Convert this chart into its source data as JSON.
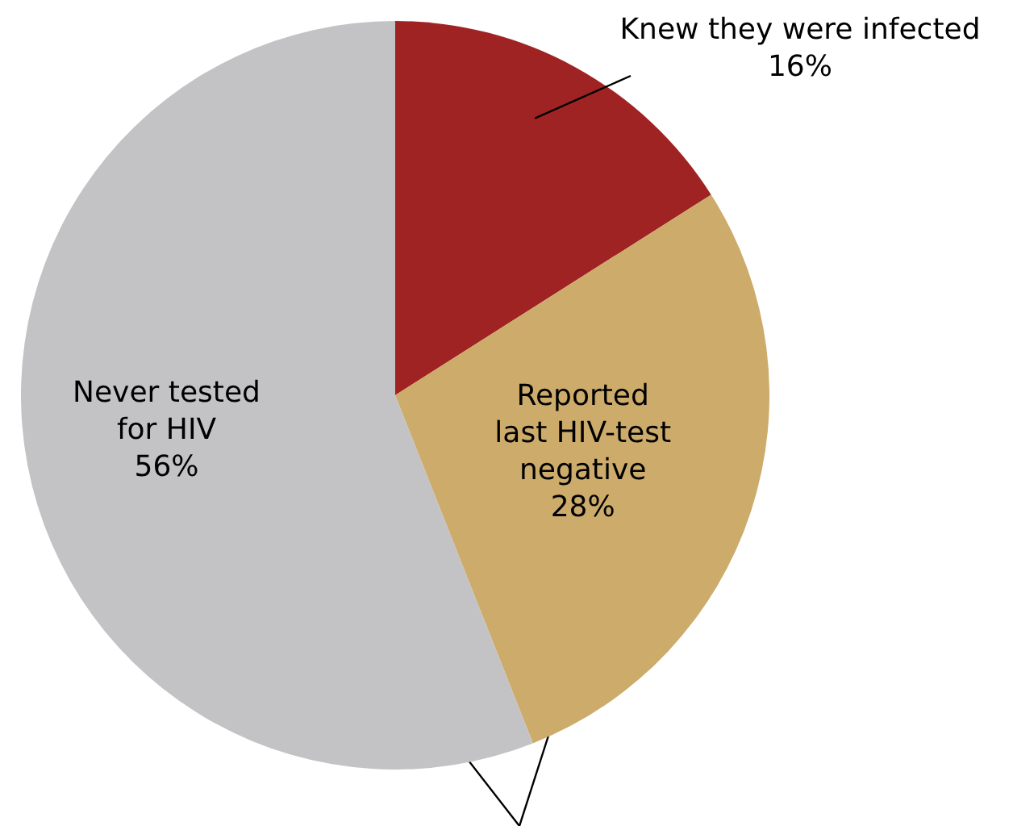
{
  "chart_data": {
    "type": "pie",
    "categories": [
      "Knew they were infected",
      "Reported\nlast HIV-test\nnegative",
      "Never tested\nfor HIV"
    ],
    "values": [
      16,
      28,
      56
    ],
    "colors": [
      "#a02323",
      "#cdab6a",
      "#c3c3c5"
    ],
    "value_labels": [
      "16%",
      "28%",
      "56%"
    ]
  }
}
